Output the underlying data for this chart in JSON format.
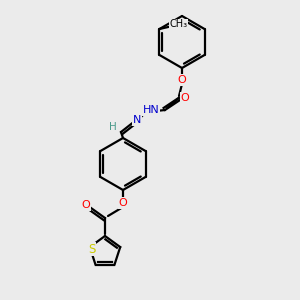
{
  "bg_color": "#ebebeb",
  "line_color": "#000000",
  "bond_width": 1.6,
  "atom_colors": {
    "O": "#ff0000",
    "N": "#0000cd",
    "S": "#cccc00",
    "C": "#000000",
    "H": "#4a9a8a"
  },
  "figsize": [
    3.0,
    3.0
  ],
  "dpi": 100
}
